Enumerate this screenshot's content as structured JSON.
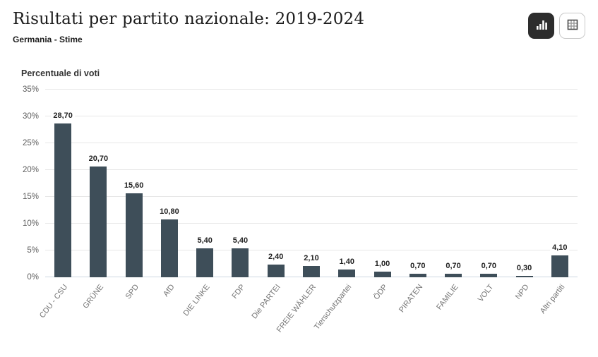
{
  "header": {
    "title": "Risultati per partito nazionale: 2019-2024",
    "subtitle": "Germania - Stime",
    "view_toggle": {
      "active_view": "chart",
      "chart_view_icon": "bar-chart-icon",
      "table_view_icon": "table-grid-icon"
    }
  },
  "colors": {
    "bar": "#3E4E59",
    "active_button_bg": "#2D2D2D",
    "gridline": "#E7E7E7",
    "axis_baseline": "#CCD6E2",
    "tick_text": "#606060",
    "category_text": "#747474",
    "value_text": "#222222"
  },
  "chart_data": {
    "type": "bar",
    "title": "Risultati per partito nazionale: 2019-2024",
    "subtitle": "Germania - Stime",
    "ylabel": "Percentuale di voti",
    "xlabel": "",
    "ylim": [
      0,
      35
    ],
    "yticks": [
      "0%",
      "5%",
      "10%",
      "15%",
      "20%",
      "25%",
      "30%",
      "35%"
    ],
    "grid": true,
    "legend": false,
    "categories": [
      "CDU - CSU",
      "GRÜNE",
      "SPD",
      "AfD",
      "DIE LINKE",
      "FDP",
      "Die PARTEI",
      "FREIE WÄHLER",
      "Tierschutzpartei",
      "ÖDP",
      "PIRATEN",
      "FAMILIE",
      "VOLT",
      "NPD",
      "Altri partiti"
    ],
    "values": [
      28.7,
      20.7,
      15.6,
      10.8,
      5.4,
      5.4,
      2.4,
      2.1,
      1.4,
      1.0,
      0.7,
      0.7,
      0.7,
      0.3,
      4.1
    ],
    "value_labels": [
      "28,70",
      "20,70",
      "15,60",
      "10,80",
      "5,40",
      "5,40",
      "2,40",
      "2,10",
      "1,40",
      "1,00",
      "0,70",
      "0,70",
      "0,70",
      "0,30",
      "4,10"
    ]
  }
}
